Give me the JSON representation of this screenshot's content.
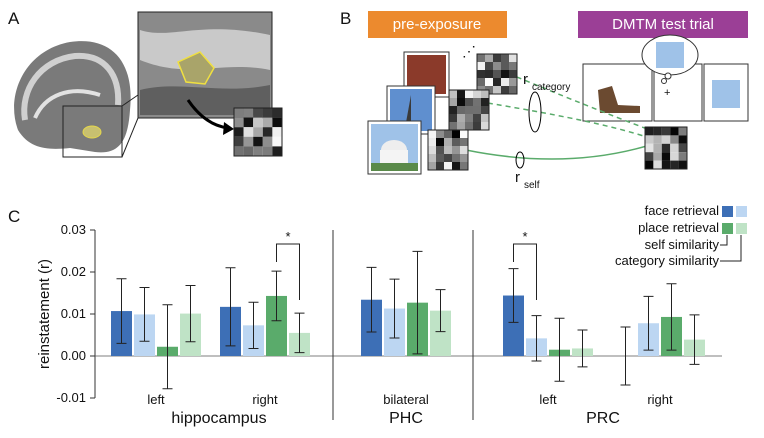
{
  "panels": {
    "a": "A",
    "b": "B",
    "c": "C"
  },
  "panel_b": {
    "pre_exposure": "pre-exposure",
    "test_trial": "DMTM test trial",
    "r_category": "r",
    "category": "category",
    "r_self": "r",
    "self": "self",
    "fixation": "+"
  },
  "chart_data": {
    "type": "bar",
    "y_label": "reinstatement (r)",
    "categories": [
      "left",
      "right",
      "bilateral",
      "left",
      "right"
    ],
    "regions": [
      "hippocampus",
      "PHC",
      "PRC"
    ],
    "legend": {
      "tasks": [
        "face retrieval",
        "place retrieval"
      ],
      "measures": [
        "self similarity",
        "category similarity"
      ]
    },
    "series": [
      {
        "color": "#3d6fb6",
        "values": [
          0.0107,
          0.0117,
          0.0134,
          0.0144,
          0.0
        ],
        "errors": [
          0.0077,
          0.0093,
          0.0077,
          0.0064,
          0.0069
        ]
      },
      {
        "color": "#bcd6f2",
        "values": [
          0.0099,
          0.0073,
          0.0113,
          0.0042,
          0.0078
        ],
        "errors": [
          0.0064,
          0.0055,
          0.007,
          0.0054,
          0.0064
        ]
      },
      {
        "color": "#5aab6b",
        "values": [
          0.0022,
          0.0143,
          0.0127,
          0.0015,
          0.0093
        ],
        "errors": [
          0.01,
          0.0059,
          0.0122,
          0.0075,
          0.0079
        ]
      },
      {
        "color": "#bfe3c6",
        "values": [
          0.0101,
          0.0055,
          0.0108,
          0.0018,
          0.0039
        ],
        "errors": [
          0.0067,
          0.0047,
          0.005,
          0.0044,
          0.0059
        ]
      }
    ],
    "significance": [
      "*",
      "*"
    ],
    "ylim": [
      -0.01,
      0.03
    ],
    "yticks": [
      -0.01,
      {
        "value": 0,
        "label": "0.00"
      },
      0.01,
      0.02,
      0.03
    ]
  }
}
